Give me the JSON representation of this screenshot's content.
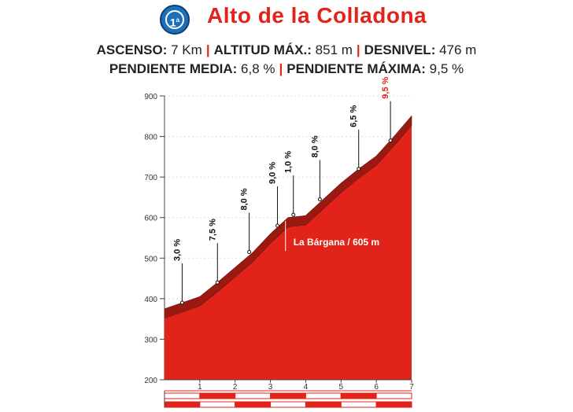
{
  "header": {
    "badge": "1",
    "badge_sup": "a",
    "title": "Alto de la Colladona",
    "stats": [
      {
        "label": "ASCENSO:",
        "value": "7 Km"
      },
      {
        "label": "ALTITUD MÁX.:",
        "value": "851 m"
      },
      {
        "label": "DESNIVEL:",
        "value": "476 m"
      },
      {
        "label": "PENDIENTE MEDIA:",
        "value": "6,8 %"
      },
      {
        "label": "PENDIENTE MÁXIMA:",
        "value": "9,5 %"
      }
    ]
  },
  "colors": {
    "accent": "#e2231a",
    "fill": "#e2231a",
    "edge": "#9a1a12",
    "badge": "#1d6fb8"
  },
  "chart_data": {
    "type": "area",
    "x": [
      0,
      0.5,
      1,
      1.5,
      2,
      2.5,
      3,
      3.5,
      4,
      4.5,
      5,
      5.5,
      6,
      6.5,
      7
    ],
    "y": [
      375,
      390,
      405,
      440,
      477,
      514,
      560,
      600,
      605,
      645,
      685,
      720,
      752,
      800,
      851
    ],
    "xticks": [
      "1",
      "2",
      "3",
      "4",
      "5",
      "6",
      "7"
    ],
    "yticks": [
      "200",
      "300",
      "400",
      "500",
      "600",
      "700",
      "800",
      "900"
    ],
    "xlim": [
      0,
      7
    ],
    "ylim": [
      200,
      900
    ],
    "segments": [
      {
        "label": "3,0 %",
        "x": 0.5,
        "y": 390,
        "max": false
      },
      {
        "label": "7,5 %",
        "x": 1.5,
        "y": 440,
        "max": false
      },
      {
        "label": "8,0 %",
        "x": 2.4,
        "y": 515,
        "max": false
      },
      {
        "label": "9,0 %",
        "x": 3.2,
        "y": 580,
        "max": false
      },
      {
        "label": "1,0 %",
        "x": 3.65,
        "y": 607,
        "max": false
      },
      {
        "label": "8,0 %",
        "x": 4.4,
        "y": 645,
        "max": false
      },
      {
        "label": "6,5 %",
        "x": 5.5,
        "y": 720,
        "max": false
      },
      {
        "label": "9,5 %",
        "x": 6.4,
        "y": 790,
        "max": true
      }
    ],
    "annotation": {
      "label": "La Bárgana / 605 m",
      "x": 3.65,
      "y": 607
    }
  }
}
